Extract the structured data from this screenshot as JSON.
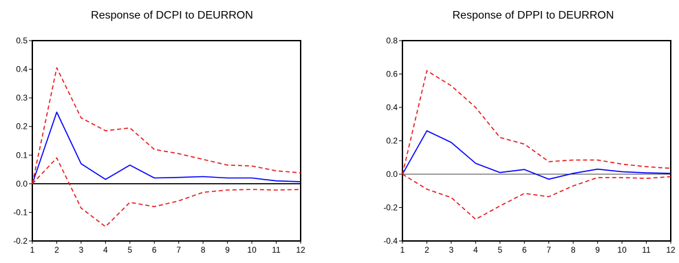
{
  "chart_data": [
    {
      "type": "line",
      "title": "Response of DCPI to DEURRON",
      "xlabel": "",
      "ylabel": "",
      "x": [
        1,
        2,
        3,
        4,
        5,
        6,
        7,
        8,
        9,
        10,
        11,
        12
      ],
      "xlim": [
        1,
        12
      ],
      "ylim": [
        -0.2,
        0.5
      ],
      "yticks": [
        -0.2,
        -0.1,
        0.0,
        0.1,
        0.2,
        0.3,
        0.4,
        0.5
      ],
      "ytick_labels": [
        "-0.2",
        "-0.1",
        "0.0",
        "0.1",
        "0.2",
        "0.3",
        "0.4",
        "0.5"
      ],
      "xtick_labels": [
        "1",
        "2",
        "3",
        "4",
        "5",
        "6",
        "7",
        "8",
        "9",
        "10",
        "11",
        "12"
      ],
      "zero_line": true,
      "grid": false,
      "series": [
        {
          "role": "response",
          "color": "#0000ff",
          "style": "solid",
          "values": [
            0.0,
            0.25,
            0.07,
            0.015,
            0.065,
            0.02,
            0.022,
            0.025,
            0.02,
            0.02,
            0.01,
            0.007
          ]
        },
        {
          "role": "upper_band",
          "color": "#e8191c",
          "style": "dashed",
          "values": [
            0.0,
            0.405,
            0.23,
            0.185,
            0.195,
            0.12,
            0.105,
            0.085,
            0.065,
            0.062,
            0.045,
            0.038
          ]
        },
        {
          "role": "lower_band",
          "color": "#e8191c",
          "style": "dashed",
          "values": [
            0.0,
            0.09,
            -0.085,
            -0.15,
            -0.065,
            -0.08,
            -0.06,
            -0.03,
            -0.022,
            -0.02,
            -0.022,
            -0.02
          ]
        }
      ]
    },
    {
      "type": "line",
      "title": "Response of DPPI to DEURRON",
      "xlabel": "",
      "ylabel": "",
      "x": [
        1,
        2,
        3,
        4,
        5,
        6,
        7,
        8,
        9,
        10,
        11,
        12
      ],
      "xlim": [
        1,
        12
      ],
      "ylim": [
        -0.4,
        0.8
      ],
      "yticks": [
        -0.4,
        -0.2,
        0.0,
        0.2,
        0.4,
        0.6,
        0.8
      ],
      "ytick_labels": [
        "-0.4",
        "-0.2",
        "0.0",
        "0.2",
        "0.4",
        "0.6",
        "0.8"
      ],
      "xtick_labels": [
        "1",
        "2",
        "3",
        "4",
        "5",
        "6",
        "7",
        "8",
        "9",
        "10",
        "11",
        "12"
      ],
      "zero_line": true,
      "grid": false,
      "series": [
        {
          "role": "response",
          "color": "#0000ff",
          "style": "solid",
          "values": [
            0.0,
            0.26,
            0.19,
            0.065,
            0.01,
            0.028,
            -0.03,
            0.005,
            0.03,
            0.015,
            0.008,
            0.005
          ]
        },
        {
          "role": "upper_band",
          "color": "#e8191c",
          "style": "dashed",
          "values": [
            0.0,
            0.62,
            0.53,
            0.4,
            0.22,
            0.18,
            0.075,
            0.085,
            0.085,
            0.06,
            0.045,
            0.035
          ]
        },
        {
          "role": "lower_band",
          "color": "#e8191c",
          "style": "dashed",
          "values": [
            0.0,
            -0.09,
            -0.14,
            -0.27,
            -0.19,
            -0.115,
            -0.135,
            -0.07,
            -0.02,
            -0.02,
            -0.025,
            -0.015
          ]
        }
      ]
    }
  ]
}
